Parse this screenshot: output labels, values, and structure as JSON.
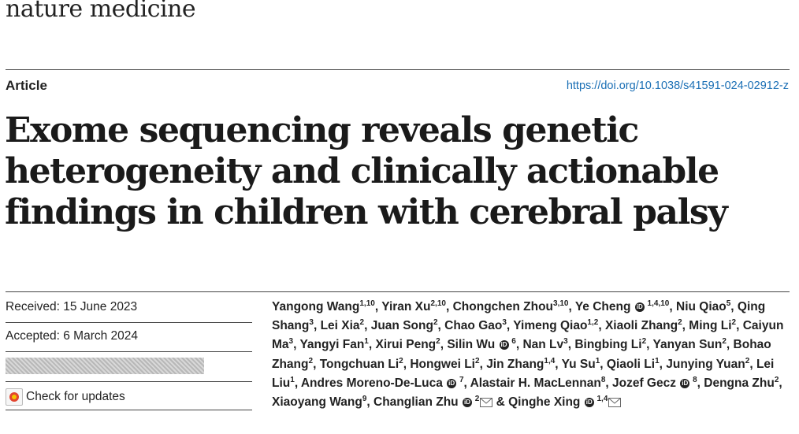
{
  "journal": "nature medicine",
  "article_type": "Article",
  "doi": "https://doi.org/10.1038/s41591-024-02912-z",
  "title_lines": [
    "Exome sequencing reveals genetic",
    "heterogeneity and clinically actionable",
    "findings in children with cerebral palsy"
  ],
  "received": "Received: 15 June 2023",
  "accepted": "Accepted: 6 March 2024",
  "check_updates": "Check for updates",
  "authors": [
    {
      "name": "Yangong Wang",
      "sup": "1,10"
    },
    {
      "name": "Yiran Xu",
      "sup": "2,10"
    },
    {
      "name": "Chongchen Zhou",
      "sup": "3,10"
    },
    {
      "name": "Ye Cheng",
      "sup": "1,4,10",
      "orcid": true
    },
    {
      "name": "Niu Qiao",
      "sup": "5"
    },
    {
      "name": "Qing Shang",
      "sup": "3"
    },
    {
      "name": "Lei Xia",
      "sup": "2"
    },
    {
      "name": "Juan Song",
      "sup": "2"
    },
    {
      "name": "Chao Gao",
      "sup": "3"
    },
    {
      "name": "Yimeng Qiao",
      "sup": "1,2"
    },
    {
      "name": "Xiaoli Zhang",
      "sup": "2"
    },
    {
      "name": "Ming Li",
      "sup": "2"
    },
    {
      "name": "Caiyun Ma",
      "sup": "3"
    },
    {
      "name": "Yangyi Fan",
      "sup": "1"
    },
    {
      "name": "Xirui Peng",
      "sup": "2"
    },
    {
      "name": "Silin Wu",
      "sup": "6",
      "orcid": true
    },
    {
      "name": "Nan Lv",
      "sup": "3"
    },
    {
      "name": "Bingbing Li",
      "sup": "2"
    },
    {
      "name": "Yanyan Sun",
      "sup": "2"
    },
    {
      "name": "Bohao Zhang",
      "sup": "2"
    },
    {
      "name": "Tongchuan Li",
      "sup": "2"
    },
    {
      "name": "Hongwei Li",
      "sup": "2"
    },
    {
      "name": "Jin Zhang",
      "sup": "1,4"
    },
    {
      "name": "Yu Su",
      "sup": "1"
    },
    {
      "name": "Qiaoli Li",
      "sup": "1"
    },
    {
      "name": "Junying Yuan",
      "sup": "2"
    },
    {
      "name": "Lei Liu",
      "sup": "1"
    },
    {
      "name": "Andres Moreno-De-Luca",
      "sup": "7",
      "orcid": true
    },
    {
      "name": "Alastair H. MacLennan",
      "sup": "8"
    },
    {
      "name": "Jozef Gecz",
      "sup": "8",
      "orcid": true
    },
    {
      "name": "Dengna Zhu",
      "sup": "2"
    },
    {
      "name": "Xiaoyang Wang",
      "sup": "9"
    },
    {
      "name": "Changlian Zhu",
      "sup": "2",
      "orcid": true,
      "mail": true
    },
    {
      "name": "Qinghe Xing",
      "sup": "1,4",
      "orcid": true,
      "mail": true
    }
  ]
}
